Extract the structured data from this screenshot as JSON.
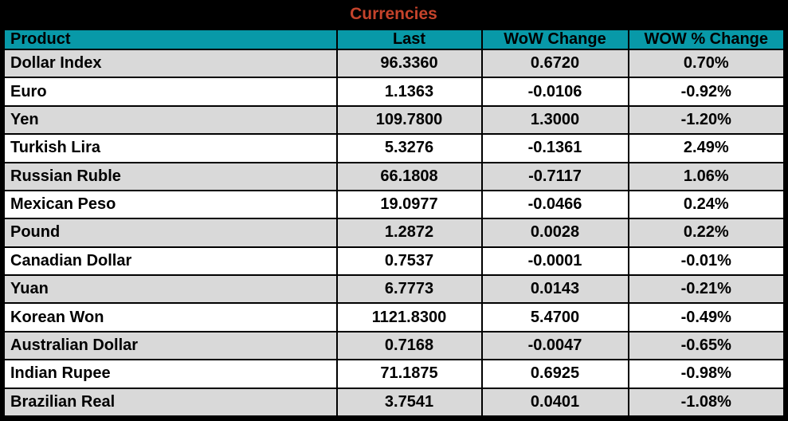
{
  "title": "Currencies",
  "colors": {
    "title_text": "#C5432B",
    "title_bg": "#000000",
    "header_bg": "#0899A8",
    "row_alt_bg": "#D9D9D9",
    "row_bg": "#FFFFFF",
    "border": "#000000",
    "cell_text": "#000000"
  },
  "chart_data": {
    "type": "table",
    "title": "Currencies",
    "columns": [
      "Product",
      "Last",
      "WoW Change",
      "WOW % Change"
    ],
    "rows": [
      [
        "Dollar Index",
        "96.3360",
        "0.6720",
        "0.70%"
      ],
      [
        "Euro",
        "1.1363",
        "-0.0106",
        "-0.92%"
      ],
      [
        "Yen",
        "109.7800",
        "1.3000",
        "-1.20%"
      ],
      [
        "Turkish Lira",
        "5.3276",
        "-0.1361",
        "2.49%"
      ],
      [
        "Russian Ruble",
        "66.1808",
        "-0.7117",
        "1.06%"
      ],
      [
        "Mexican Peso",
        "19.0977",
        "-0.0466",
        "0.24%"
      ],
      [
        "Pound",
        "1.2872",
        "0.0028",
        "0.22%"
      ],
      [
        "Canadian Dollar",
        "0.7537",
        "-0.0001",
        "-0.01%"
      ],
      [
        "Yuan",
        "6.7773",
        "0.0143",
        "-0.21%"
      ],
      [
        "Korean Won",
        "1121.8300",
        "5.4700",
        "-0.49%"
      ],
      [
        "Australian Dollar",
        "0.7168",
        "-0.0047",
        "-0.65%"
      ],
      [
        "Indian Rupee",
        "71.1875",
        "0.6925",
        "-0.98%"
      ],
      [
        "Brazilian Real",
        "3.7541",
        "0.0401",
        "-1.08%"
      ]
    ]
  }
}
